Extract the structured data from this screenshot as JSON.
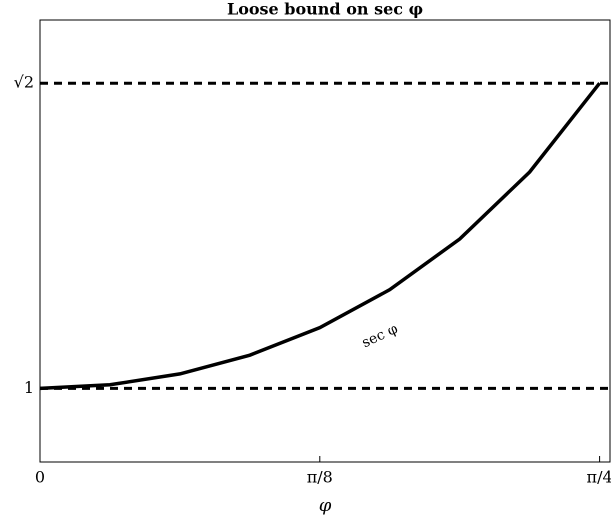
{
  "chart_data": {
    "type": "line",
    "title": "Loose bound on sec φ",
    "xlabel": "φ",
    "x": [
      0,
      0.09817,
      0.19635,
      0.29452,
      0.3927,
      0.49087,
      0.58905,
      0.68722,
      0.7854
    ],
    "series": [
      {
        "color": "#000000",
        "values": [
          1,
          1.00484,
          1.01959,
          1.045,
          1.08239,
          1.13389,
          1.20269,
          1.29364,
          1.41421
        ]
      }
    ],
    "hlines": [
      1,
      1.41421
    ],
    "annotations": [
      {
        "text": "sec φ"
      }
    ],
    "xlim": [
      0,
      0.8
    ],
    "ylim": [
      0.9,
      1.5
    ],
    "xticks": [
      0,
      {
        "value": 0.3927,
        "label": "π/8"
      },
      {
        "value": 0.7854,
        "label": "π/4"
      }
    ],
    "yticks": [
      1,
      {
        "value": 1.41421,
        "label": "√2"
      }
    ]
  }
}
